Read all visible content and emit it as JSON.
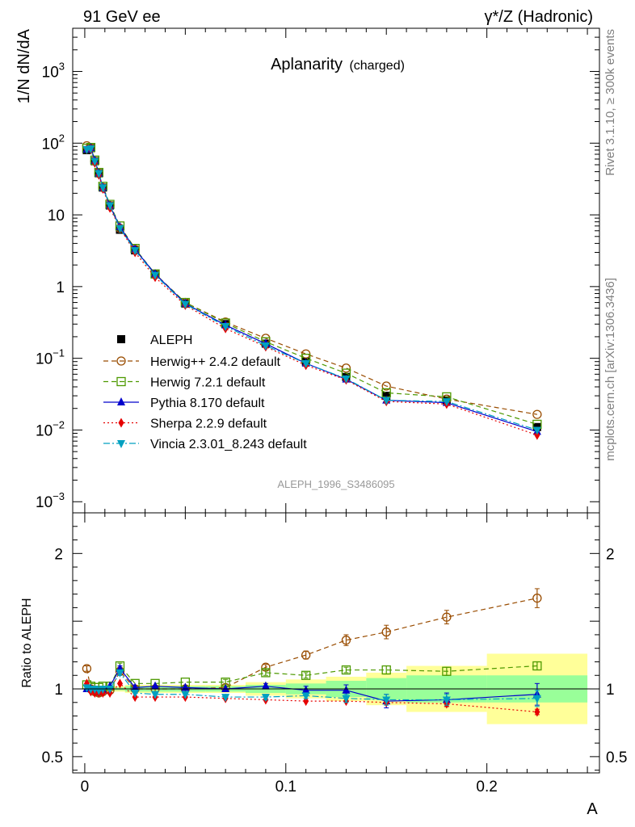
{
  "header": {
    "left": "91 GeV ee",
    "right": "γ*/Z (Hadronic)"
  },
  "side_text": {
    "rivet": "Rivet 3.1.10, ≥ 300k events",
    "mcplots": "mcplots.cern.ch [arXiv:1306.3436]"
  },
  "analysis_id": "ALEPH_1996_S3486095",
  "chart_data": {
    "type": "line",
    "title": "Aplanarity",
    "subtitle": "(charged)",
    "xlabel": "A",
    "ylabel": "1/N dN/dA",
    "ratio_ylabel": "Ratio to ALEPH",
    "xlim": [
      -0.006,
      0.256
    ],
    "ylim": [
      0.0007,
      4000
    ],
    "y_scale": "log",
    "ratio_ylim": [
      0.38,
      2.3
    ],
    "x_ticks": [
      {
        "value": 0,
        "label": "0"
      },
      {
        "value": 0.1,
        "label": "0.1"
      },
      {
        "value": 0.2,
        "label": "0.2"
      }
    ],
    "y_ticks": [
      {
        "value": 0.001,
        "base": "10",
        "exp": "−3"
      },
      {
        "value": 0.01,
        "base": "10",
        "exp": "−2"
      },
      {
        "value": 0.1,
        "base": "10",
        "exp": "−1"
      },
      {
        "value": 1,
        "base": "1",
        "exp": ""
      },
      {
        "value": 10,
        "base": "10",
        "exp": ""
      },
      {
        "value": 100,
        "base": "10",
        "exp": "2"
      },
      {
        "value": 1000,
        "base": "10",
        "exp": "3"
      }
    ],
    "ratio_ticks": [
      {
        "value": 0.5,
        "label": "0.5"
      },
      {
        "value": 1,
        "label": "1"
      },
      {
        "value": 2,
        "label": "2"
      }
    ],
    "x": [
      0.001,
      0.003,
      0.005,
      0.007,
      0.009,
      0.0125,
      0.0175,
      0.025,
      0.035,
      0.05,
      0.07,
      0.09,
      0.11,
      0.13,
      0.15,
      0.18,
      0.225
    ],
    "bin_edges": [
      0,
      0.002,
      0.004,
      0.006,
      0.008,
      0.01,
      0.015,
      0.02,
      0.03,
      0.04,
      0.06,
      0.08,
      0.1,
      0.12,
      0.14,
      0.16,
      0.2,
      0.25
    ],
    "band_yellow": [
      0.02,
      0.02,
      0.02,
      0.02,
      0.02,
      0.02,
      0.02,
      0.03,
      0.03,
      0.03,
      0.03,
      0.05,
      0.07,
      0.09,
      0.12,
      0.17,
      0.26
    ],
    "band_green": [
      0.01,
      0.01,
      0.01,
      0.01,
      0.01,
      0.01,
      0.01,
      0.02,
      0.02,
      0.02,
      0.02,
      0.03,
      0.04,
      0.06,
      0.08,
      0.1,
      0.1
    ],
    "data": {
      "name": "ALEPH",
      "values": [
        80,
        85,
        56,
        38,
        24,
        13.5,
        6.2,
        3.2,
        1.5,
        0.58,
        0.3,
        0.16,
        0.09,
        0.055,
        0.03,
        0.026,
        0.011
      ]
    },
    "series": [
      {
        "name": "Herwig++ 2.4.2 default",
        "color": "#994c00",
        "dash": "6,4",
        "marker": "circle-open",
        "values": [
          92,
          85,
          56,
          38,
          24,
          13.5,
          6.5,
          3.3,
          1.5,
          0.6,
          0.32,
          0.19,
          0.115,
          0.073,
          0.041,
          0.027,
          0.0165
        ],
        "ratio": [
          1.15,
          1.0,
          0.98,
          0.97,
          0.98,
          0.99,
          1.13,
          1.0,
          1.0,
          1.0,
          1.01,
          1.16,
          1.25,
          1.36,
          1.42,
          1.53,
          1.67
        ],
        "ratio_err": [
          0.02,
          0.02,
          0.02,
          0.02,
          0.02,
          0.02,
          0.03,
          0.02,
          0.02,
          0.02,
          0.02,
          0.02,
          0.03,
          0.04,
          0.05,
          0.05,
          0.07
        ]
      },
      {
        "name": "Herwig 7.2.1 default",
        "color": "#4d9900",
        "dash": "6,4",
        "marker": "square-open",
        "values": [
          85,
          87,
          58,
          39,
          25,
          14,
          7,
          3.4,
          1.5,
          0.6,
          0.31,
          0.17,
          0.1,
          0.062,
          0.033,
          0.029,
          0.012
        ],
        "ratio": [
          1.03,
          1.02,
          1.01,
          1.01,
          1.02,
          1.02,
          1.17,
          1.04,
          1.04,
          1.05,
          1.05,
          1.12,
          1.1,
          1.14,
          1.14,
          1.13,
          1.17
        ],
        "ratio_err": [
          0.01,
          0.01,
          0.01,
          0.01,
          0.01,
          0.01,
          0.02,
          0.01,
          0.01,
          0.01,
          0.02,
          0.02,
          0.02,
          0.02,
          0.03,
          0.03,
          0.03
        ]
      },
      {
        "name": "Pythia 8.170 default",
        "color": "#0000cc",
        "dash": "",
        "marker": "triangle-up",
        "values": [
          82,
          86,
          57,
          38,
          24,
          13.5,
          6.8,
          3.3,
          1.5,
          0.58,
          0.29,
          0.16,
          0.085,
          0.051,
          0.026,
          0.024,
          0.0095
        ],
        "ratio": [
          1.0,
          1.0,
          0.99,
          0.98,
          0.99,
          1.02,
          1.15,
          1.01,
          1.02,
          1.01,
          1.0,
          1.02,
          0.99,
          0.99,
          0.91,
          0.92,
          0.96
        ],
        "ratio_err": [
          0.01,
          0.01,
          0.01,
          0.01,
          0.01,
          0.01,
          0.02,
          0.01,
          0.01,
          0.01,
          0.01,
          0.02,
          0.03,
          0.04,
          0.05,
          0.05,
          0.08
        ]
      },
      {
        "name": "Sherpa 2.2.9 default",
        "color": "#e60000",
        "dash": "2,3",
        "marker": "diamond",
        "values": [
          82,
          83,
          53,
          36,
          23,
          12.5,
          6.5,
          3.0,
          1.35,
          0.55,
          0.26,
          0.145,
          0.08,
          0.05,
          0.025,
          0.023,
          0.0085
        ],
        "ratio": [
          1.04,
          0.98,
          0.97,
          0.97,
          0.97,
          0.97,
          1.04,
          0.94,
          0.94,
          0.94,
          0.93,
          0.92,
          0.91,
          0.91,
          0.9,
          0.89,
          0.83
        ],
        "ratio_err": [
          0.01,
          0.01,
          0.01,
          0.01,
          0.01,
          0.01,
          0.01,
          0.01,
          0.01,
          0.01,
          0.01,
          0.01,
          0.01,
          0.01,
          0.01,
          0.02,
          0.02
        ]
      },
      {
        "name": "Vincia 2.3.01_8.243 default",
        "color": "#00a0c0",
        "dash": "8,3,2,3",
        "marker": "triangle-down",
        "values": [
          82,
          84,
          56,
          38,
          24,
          13.5,
          6.5,
          3.2,
          1.45,
          0.57,
          0.28,
          0.15,
          0.085,
          0.052,
          0.026,
          0.025,
          0.01
        ],
        "ratio": [
          1.01,
          1.0,
          1.0,
          0.99,
          1.0,
          1.0,
          1.12,
          0.97,
          0.96,
          0.96,
          0.94,
          0.94,
          0.95,
          0.93,
          0.92,
          0.92,
          0.93
        ],
        "ratio_err": [
          0.01,
          0.01,
          0.01,
          0.01,
          0.01,
          0.01,
          0.02,
          0.01,
          0.01,
          0.01,
          0.01,
          0.02,
          0.02,
          0.03,
          0.04,
          0.04,
          0.06
        ]
      }
    ],
    "band_colors": {
      "yellow": "#ffff99",
      "green": "#99ff99"
    }
  }
}
